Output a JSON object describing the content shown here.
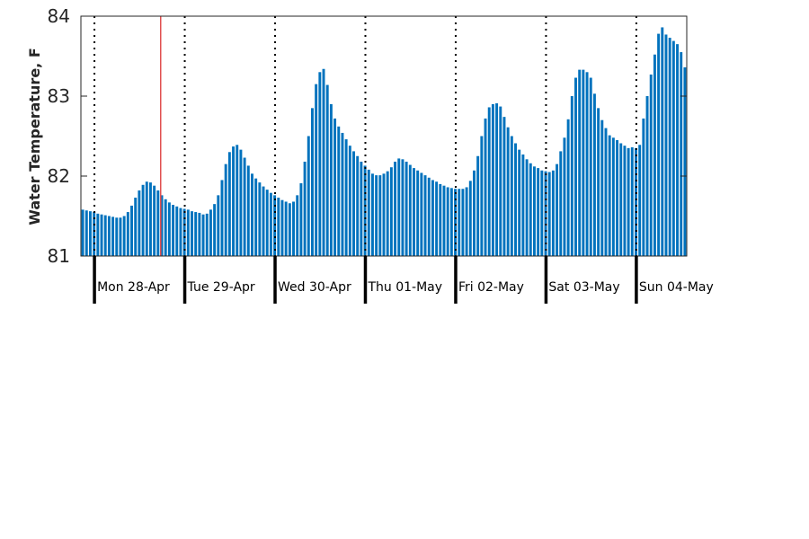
{
  "chart_data": {
    "type": "bar",
    "title": "",
    "xlabel": "",
    "ylabel": "Water Temperature, F",
    "ylim": [
      81,
      84
    ],
    "yticks": [
      81,
      82,
      83,
      84
    ],
    "grid": false,
    "bar_color": "#0072bd",
    "start": "2025-04-27 20:24",
    "interval_minutes": 60,
    "day_labels": [
      "Mon 28-Apr",
      "Tue 29-Apr",
      "Wed 30-Apr",
      "Thu 01-May",
      "Fri 02-May",
      "Sat 03-May",
      "Sun 04-May"
    ],
    "current_time_marker": "2025-04-28 17:36",
    "marker_color": "#e05050",
    "values": [
      81.58,
      81.57,
      81.56,
      81.55,
      81.53,
      81.52,
      81.51,
      81.5,
      81.49,
      81.48,
      81.48,
      81.5,
      81.55,
      81.63,
      81.73,
      81.82,
      81.89,
      81.93,
      81.92,
      81.88,
      81.82,
      81.76,
      81.71,
      81.67,
      81.64,
      81.62,
      81.6,
      81.59,
      81.58,
      81.56,
      81.55,
      81.54,
      81.52,
      81.53,
      81.58,
      81.65,
      81.76,
      81.95,
      82.15,
      82.3,
      82.37,
      82.39,
      82.33,
      82.23,
      82.13,
      82.03,
      81.97,
      81.92,
      81.87,
      81.83,
      81.79,
      81.76,
      81.73,
      81.7,
      81.68,
      81.66,
      81.68,
      81.76,
      81.91,
      82.18,
      82.5,
      82.85,
      83.15,
      83.3,
      83.34,
      83.14,
      82.9,
      82.72,
      82.62,
      82.54,
      82.46,
      82.38,
      82.31,
      82.25,
      82.18,
      82.13,
      82.08,
      82.03,
      82.01,
      82.01,
      82.03,
      82.06,
      82.11,
      82.18,
      82.22,
      82.21,
      82.18,
      82.14,
      82.1,
      82.07,
      82.04,
      82.01,
      81.98,
      81.95,
      81.93,
      81.9,
      81.88,
      81.86,
      81.85,
      81.84,
      81.84,
      81.84,
      81.86,
      81.94,
      82.07,
      82.25,
      82.5,
      82.72,
      82.86,
      82.9,
      82.91,
      82.87,
      82.74,
      82.61,
      82.5,
      82.41,
      82.33,
      82.27,
      82.21,
      82.16,
      82.12,
      82.1,
      82.07,
      82.06,
      82.05,
      82.07,
      82.15,
      82.31,
      82.48,
      82.71,
      83.0,
      83.23,
      83.33,
      83.33,
      83.3,
      83.23,
      83.03,
      82.85,
      82.7,
      82.6,
      82.51,
      82.48,
      82.45,
      82.41,
      82.38,
      82.35,
      82.36,
      82.35,
      82.39,
      82.72,
      83.0,
      83.27,
      83.52,
      83.78,
      83.86,
      83.77,
      83.73,
      83.69,
      83.65,
      83.55,
      83.36
    ]
  }
}
